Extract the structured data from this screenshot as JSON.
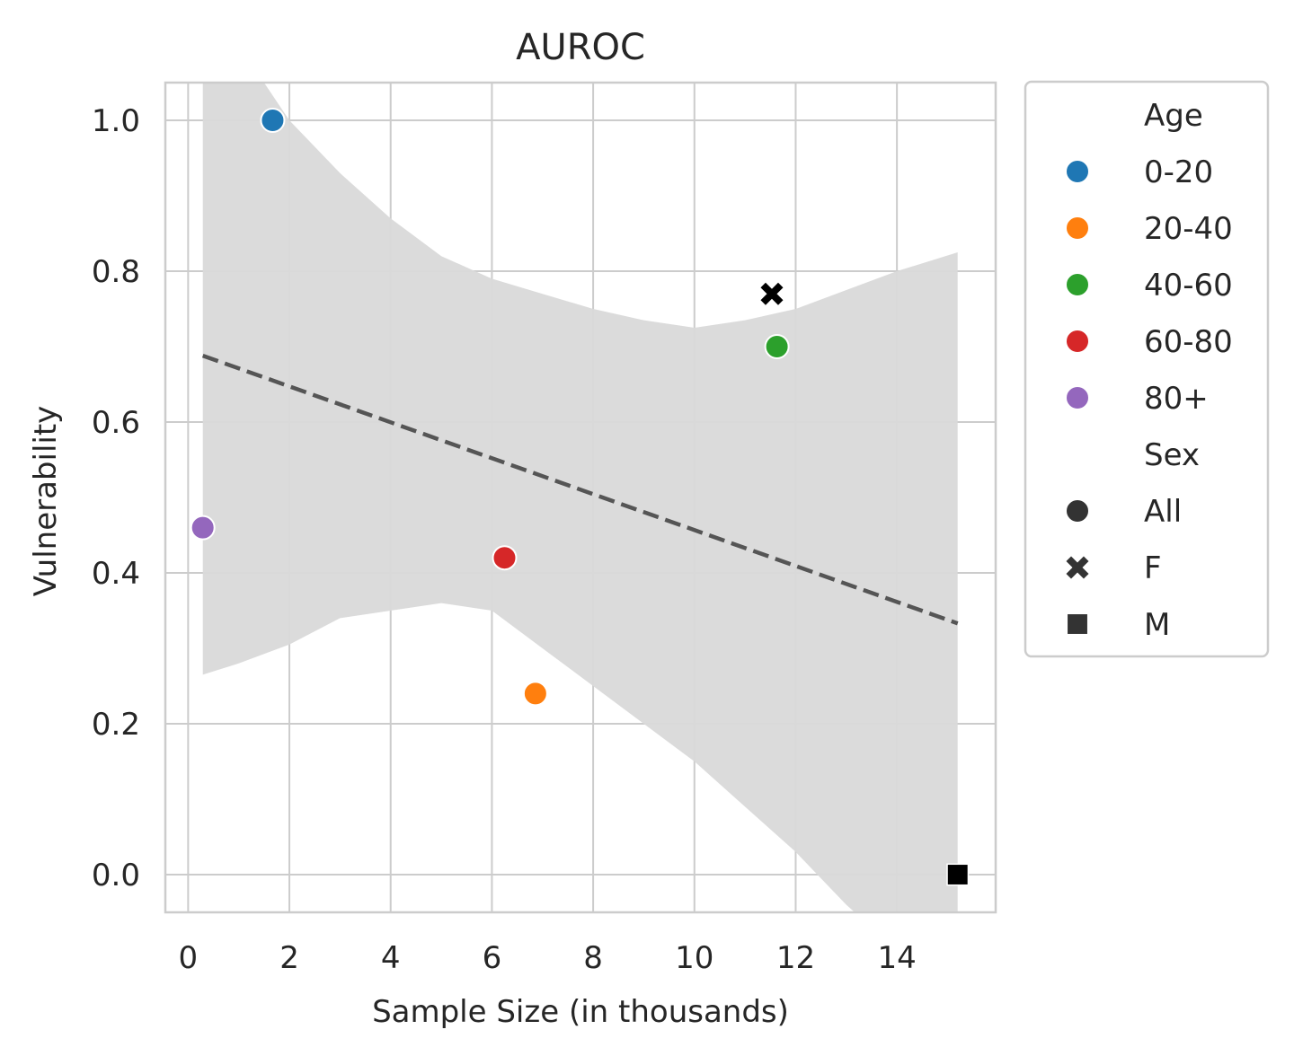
{
  "chart_data": {
    "type": "scatter",
    "title": "AUROC",
    "xlabel": "Sample Size (in thousands)",
    "ylabel": "Vulnerability",
    "xlim": [
      -0.45,
      15.95
    ],
    "ylim": [
      -0.05,
      1.05
    ],
    "x_ticks": [
      "0",
      "2",
      "4",
      "6",
      "8",
      "10",
      "12",
      "14"
    ],
    "y_ticks": [
      "0.0",
      "0.2",
      "0.4",
      "0.6",
      "0.8",
      "1.0"
    ],
    "grid": true,
    "legend_position": "outside-right",
    "points": [
      {
        "age": "0-20",
        "sex": "All",
        "x": 1.67,
        "y": 1.0
      },
      {
        "age": "20-40",
        "sex": "All",
        "x": 6.86,
        "y": 0.24
      },
      {
        "age": "40-60",
        "sex": "All",
        "x": 11.63,
        "y": 0.7
      },
      {
        "age": "60-80",
        "sex": "All",
        "x": 6.25,
        "y": 0.42
      },
      {
        "age": "80+",
        "sex": "All",
        "x": 0.29,
        "y": 0.46
      },
      {
        "age": null,
        "sex": "F",
        "x": 11.53,
        "y": 0.77
      },
      {
        "age": null,
        "sex": "M",
        "x": 15.2,
        "y": 0.0
      }
    ],
    "trend_line": {
      "style": "dashed",
      "x": [
        0.29,
        15.2
      ],
      "y": [
        0.688,
        0.333
      ]
    },
    "confidence_band": {
      "x": [
        0.29,
        1.0,
        2.0,
        3.0,
        4.0,
        5.0,
        6.0,
        7.0,
        8.0,
        9.0,
        10.0,
        11.0,
        12.0,
        13.0,
        14.0,
        15.2
      ],
      "upper": [
        1.12,
        1.1,
        1.0,
        0.93,
        0.87,
        0.82,
        0.79,
        0.77,
        0.75,
        0.735,
        0.725,
        0.735,
        0.75,
        0.775,
        0.8,
        0.825
      ],
      "lower": [
        0.265,
        0.28,
        0.305,
        0.34,
        0.35,
        0.36,
        0.35,
        0.3,
        0.25,
        0.2,
        0.15,
        0.09,
        0.03,
        -0.04,
        -0.1,
        -0.17
      ]
    },
    "legend": {
      "age_title": "Age",
      "age_items": [
        {
          "label": "0-20",
          "color": "#1f77b4"
        },
        {
          "label": "20-40",
          "color": "#ff7f0e"
        },
        {
          "label": "40-60",
          "color": "#2ca02c"
        },
        {
          "label": "60-80",
          "color": "#d62728"
        },
        {
          "label": "80+",
          "color": "#9467bd"
        }
      ],
      "sex_title": "Sex",
      "sex_items": [
        {
          "label": "All",
          "marker": "circle"
        },
        {
          "label": "F",
          "marker": "x"
        },
        {
          "label": "M",
          "marker": "square"
        }
      ]
    },
    "colors": {
      "band": "#d9d9d9",
      "trend": "#555555",
      "grid": "#cccccc",
      "sex_marker": "#000000"
    }
  }
}
